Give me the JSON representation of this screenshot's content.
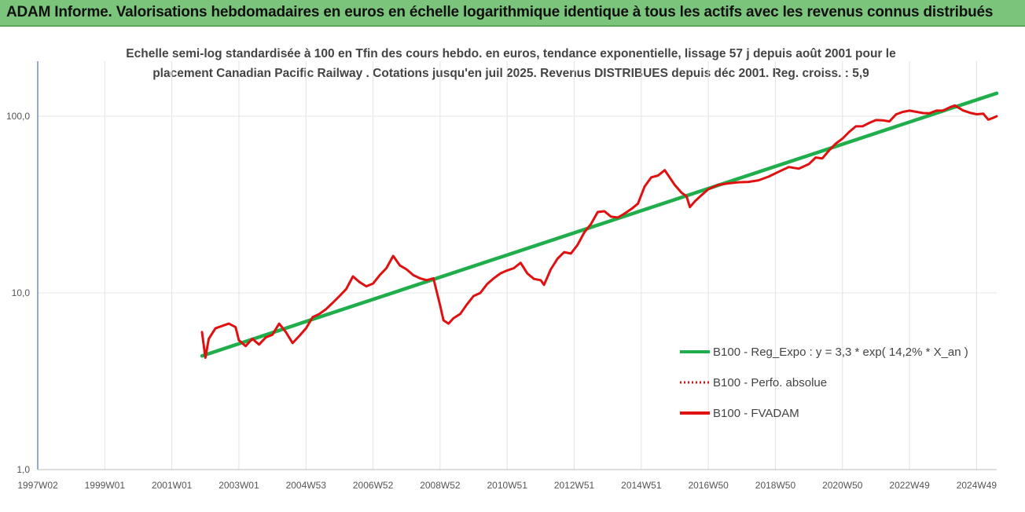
{
  "header": {
    "title": "ADAM Informe. Valorisations hebdomadaires en euros en échelle logarithmique identique à tous les actifs avec les revenus connus distribués",
    "accent": "#7bc47b"
  },
  "chart_data": {
    "type": "line",
    "title_line1": "Echelle semi-log standardisée à 100 en Tfin des cours hebdo. en euros, tendance exponentielle, lissage 57 j depuis août 2001 pour le",
    "title_line2": "placement Canadian Pacific Railway . Cotations jusqu'en juil 2025. Revenus DISTRIBUES depuis déc 2001. Reg. croiss. : 5,9",
    "y_scale": "log",
    "ylim": [
      1,
      150
    ],
    "y_ticks": [
      {
        "value": 1,
        "label": "1,0"
      },
      {
        "value": 10,
        "label": "10,0"
      },
      {
        "value": 100,
        "label": "100,0"
      }
    ],
    "xlim": [
      1997.0,
      2025.6
    ],
    "x_ticks": [
      {
        "x": 1997.0,
        "label": "1997W02"
      },
      {
        "x": 1999.0,
        "label": "1999W01"
      },
      {
        "x": 2001.0,
        "label": "2001W01"
      },
      {
        "x": 2003.0,
        "label": "2003W01"
      },
      {
        "x": 2005.0,
        "label": "2004W53"
      },
      {
        "x": 2007.0,
        "label": "2006W52"
      },
      {
        "x": 2009.0,
        "label": "2008W52"
      },
      {
        "x": 2011.0,
        "label": "2010W51"
      },
      {
        "x": 2013.0,
        "label": "2012W51"
      },
      {
        "x": 2015.0,
        "label": "2014W51"
      },
      {
        "x": 2017.0,
        "label": "2016W50"
      },
      {
        "x": 2019.0,
        "label": "2018W50"
      },
      {
        "x": 2021.0,
        "label": "2020W50"
      },
      {
        "x": 2023.0,
        "label": "2022W49"
      },
      {
        "x": 2025.0,
        "label": "2024W49"
      }
    ],
    "legend_position": "right",
    "grid": "vertical",
    "series": [
      {
        "name": "B100 - Reg_Expo : y = 3,3 * exp( 14,2% *  X_an )",
        "color": "#1fae4b",
        "style": "solid",
        "points": [
          [
            2001.9,
            4.4
          ],
          [
            2025.6,
            135
          ]
        ]
      },
      {
        "name": "B100 - Perfo. absolue",
        "color": "#e01010",
        "style": "dotted",
        "points": []
      },
      {
        "name": "B100 - FVADAM",
        "color": "#e01010",
        "style": "solid",
        "points": [
          [
            2001.9,
            6.0
          ],
          [
            2002.0,
            4.3
          ],
          [
            2002.1,
            5.5
          ],
          [
            2002.3,
            6.3
          ],
          [
            2002.5,
            6.5
          ],
          [
            2002.7,
            6.7
          ],
          [
            2002.9,
            6.4
          ],
          [
            2003.0,
            5.4
          ],
          [
            2003.2,
            5.0
          ],
          [
            2003.4,
            5.5
          ],
          [
            2003.6,
            5.1
          ],
          [
            2003.8,
            5.6
          ],
          [
            2004.0,
            5.8
          ],
          [
            2004.2,
            6.7
          ],
          [
            2004.4,
            6.0
          ],
          [
            2004.6,
            5.2
          ],
          [
            2004.8,
            5.7
          ],
          [
            2005.0,
            6.3
          ],
          [
            2005.2,
            7.3
          ],
          [
            2005.4,
            7.6
          ],
          [
            2005.6,
            8.1
          ],
          [
            2005.8,
            8.8
          ],
          [
            2006.0,
            9.6
          ],
          [
            2006.2,
            10.5
          ],
          [
            2006.4,
            12.4
          ],
          [
            2006.6,
            11.5
          ],
          [
            2006.8,
            10.9
          ],
          [
            2007.0,
            11.3
          ],
          [
            2007.2,
            12.6
          ],
          [
            2007.4,
            13.8
          ],
          [
            2007.6,
            16.2
          ],
          [
            2007.8,
            14.3
          ],
          [
            2008.0,
            13.6
          ],
          [
            2008.2,
            12.6
          ],
          [
            2008.4,
            12.1
          ],
          [
            2008.6,
            11.8
          ],
          [
            2008.8,
            12.1
          ],
          [
            2009.0,
            8.5
          ],
          [
            2009.1,
            7.0
          ],
          [
            2009.25,
            6.7
          ],
          [
            2009.4,
            7.2
          ],
          [
            2009.6,
            7.6
          ],
          [
            2009.8,
            8.6
          ],
          [
            2010.0,
            9.6
          ],
          [
            2010.2,
            10.0
          ],
          [
            2010.4,
            11.2
          ],
          [
            2010.6,
            12.1
          ],
          [
            2010.8,
            12.9
          ],
          [
            2011.0,
            13.4
          ],
          [
            2011.2,
            13.8
          ],
          [
            2011.4,
            14.8
          ],
          [
            2011.6,
            12.9
          ],
          [
            2011.8,
            12.0
          ],
          [
            2012.0,
            11.8
          ],
          [
            2012.1,
            11.1
          ],
          [
            2012.3,
            13.6
          ],
          [
            2012.5,
            15.6
          ],
          [
            2012.7,
            17.0
          ],
          [
            2012.9,
            16.7
          ],
          [
            2013.1,
            18.7
          ],
          [
            2013.3,
            22.0
          ],
          [
            2013.5,
            24.5
          ],
          [
            2013.7,
            28.7
          ],
          [
            2013.9,
            29.0
          ],
          [
            2014.1,
            27.0
          ],
          [
            2014.3,
            26.7
          ],
          [
            2014.5,
            28.1
          ],
          [
            2014.7,
            29.8
          ],
          [
            2014.9,
            32.0
          ],
          [
            2015.1,
            40.0
          ],
          [
            2015.3,
            45.1
          ],
          [
            2015.5,
            46.2
          ],
          [
            2015.7,
            49.5
          ],
          [
            2015.9,
            43.5
          ],
          [
            2016.0,
            40.8
          ],
          [
            2016.2,
            36.9
          ],
          [
            2016.35,
            35.2
          ],
          [
            2016.45,
            30.6
          ],
          [
            2016.6,
            33.0
          ],
          [
            2016.8,
            35.8
          ],
          [
            2017.0,
            38.6
          ],
          [
            2017.3,
            40.9
          ],
          [
            2017.6,
            41.7
          ],
          [
            2017.9,
            42.3
          ],
          [
            2018.2,
            42.5
          ],
          [
            2018.5,
            43.4
          ],
          [
            2018.8,
            45.5
          ],
          [
            2019.1,
            48.5
          ],
          [
            2019.4,
            51.6
          ],
          [
            2019.7,
            50.5
          ],
          [
            2020.0,
            53.6
          ],
          [
            2020.2,
            58.4
          ],
          [
            2020.4,
            57.7
          ],
          [
            2020.6,
            64.0
          ],
          [
            2020.8,
            70.0
          ],
          [
            2021.0,
            74.7
          ],
          [
            2021.2,
            81.5
          ],
          [
            2021.4,
            87.6
          ],
          [
            2021.6,
            87.7
          ],
          [
            2021.8,
            91.7
          ],
          [
            2022.0,
            95.1
          ],
          [
            2022.2,
            94.8
          ],
          [
            2022.4,
            93.5
          ],
          [
            2022.6,
            102.5
          ],
          [
            2022.8,
            105.8
          ],
          [
            2023.0,
            107.5
          ],
          [
            2023.2,
            105.9
          ],
          [
            2023.4,
            104.2
          ],
          [
            2023.6,
            104.0
          ],
          [
            2023.8,
            107.5
          ],
          [
            2024.0,
            107.5
          ],
          [
            2024.2,
            112.3
          ],
          [
            2024.35,
            115.0
          ],
          [
            2024.6,
            107.8
          ],
          [
            2024.8,
            104.6
          ],
          [
            2025.0,
            102.6
          ],
          [
            2025.2,
            103.4
          ],
          [
            2025.35,
            95.6
          ],
          [
            2025.5,
            98.0
          ],
          [
            2025.6,
            100.0
          ]
        ]
      }
    ]
  }
}
